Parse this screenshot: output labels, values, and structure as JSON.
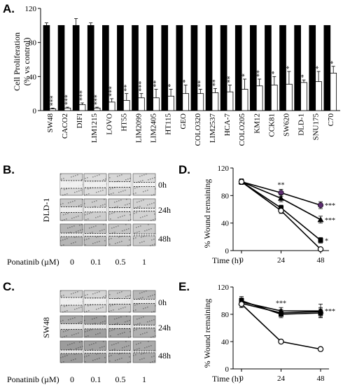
{
  "panel_labels": {
    "a": "A.",
    "b": "B.",
    "c": "C.",
    "d": "D.",
    "e": "E."
  },
  "panel_a": {
    "ylabel_line1": "Cell Proliferation",
    "ylabel_line2": "(% vs control)",
    "yticks": [
      "0",
      "40",
      "80",
      "120"
    ]
  },
  "panel_b": {
    "cell_line": "DLD-1",
    "time_labels": [
      "0h",
      "24h",
      "48h"
    ],
    "conc_title": "Ponatinib (µM)",
    "conc_values": [
      "0",
      "0.1",
      "0.5",
      "1"
    ]
  },
  "panel_c": {
    "cell_line": "SW48",
    "time_labels": [
      "0h",
      "24h",
      "48h"
    ],
    "conc_title": "Ponatinib (µM)",
    "conc_values": [
      "0",
      "0.1",
      "0.5",
      "1"
    ]
  },
  "panel_d": {
    "ylabel": "% Wound remaining",
    "xlabel_prefix": "Time (h)",
    "yticks": [
      "0",
      "40",
      "80",
      "120"
    ],
    "xticks": [
      "0",
      "24",
      "48"
    ]
  },
  "panel_e": {
    "ylabel": "% Wound remaining",
    "xlabel_prefix": "Time (h)",
    "yticks": [
      "0",
      "40",
      "80",
      "120"
    ],
    "xticks": [
      "0",
      "24",
      "48"
    ]
  },
  "chart_data": [
    {
      "panel": "A",
      "type": "bar",
      "ylabel": "Cell Proliferation (% vs control)",
      "ylim": [
        0,
        120
      ],
      "yticks": [
        0,
        40,
        80,
        120
      ],
      "categories": [
        "SW48",
        "CACO2",
        "DIFI",
        "LIM1215",
        "LOVO",
        "HT55",
        "LIM2099",
        "LIM2405",
        "HT115",
        "GEO",
        "COLO320",
        "LIM2537",
        "HCA-7",
        "COLO205",
        "KM12",
        "CCK81",
        "SW620",
        "DLD-1",
        "SNU175",
        "C70"
      ],
      "series": [
        {
          "color": "#000000",
          "values": [
            100,
            100,
            100,
            100,
            100,
            100,
            100,
            100,
            100,
            100,
            100,
            100,
            100,
            100,
            100,
            100,
            100,
            100,
            100,
            100
          ],
          "errors": [
            3,
            0,
            8,
            3,
            0,
            0,
            0,
            0,
            0,
            0,
            0,
            0,
            0,
            0,
            0,
            0,
            0,
            0,
            0,
            0
          ]
        },
        {
          "color": "#ffffff",
          "values": [
            2,
            3,
            7,
            3,
            10,
            12,
            15,
            15,
            17,
            20,
            20,
            21,
            22,
            25,
            29,
            30,
            31,
            33,
            34,
            44
          ],
          "errors": [
            1,
            1,
            2,
            1,
            4,
            8,
            5,
            10,
            8,
            10,
            5,
            5,
            8,
            12,
            8,
            10,
            15,
            3,
            12,
            8
          ]
        }
      ],
      "significance": [
        "***",
        "***",
        "***",
        "***",
        "***",
        "**",
        "***",
        "**",
        "*",
        "*",
        "**",
        "**",
        "**",
        "*",
        "**",
        "*",
        "*",
        "*",
        "*",
        "*"
      ]
    },
    {
      "panel": "D",
      "type": "line",
      "ylabel": "% Wound remaining",
      "xlabel": "Time (h)",
      "x": [
        0,
        24,
        48
      ],
      "ylim": [
        0,
        120
      ],
      "yticks": [
        0,
        40,
        80,
        120
      ],
      "series": [
        {
          "marker": "circle-purple",
          "color": "#5b2c6f",
          "values": [
            100,
            84,
            66
          ],
          "errors": [
            4,
            5,
            5
          ]
        },
        {
          "marker": "triangle",
          "color": "#000000",
          "values": [
            100,
            76,
            45
          ],
          "errors": [
            4,
            5,
            5
          ]
        },
        {
          "marker": "square",
          "color": "#000000",
          "values": [
            100,
            62,
            15
          ],
          "errors": [
            4,
            4,
            4
          ]
        },
        {
          "marker": "open-circle",
          "color": "#ffffff",
          "values": [
            100,
            58,
            2
          ],
          "errors": [
            4,
            4,
            2
          ]
        }
      ],
      "significance": [
        {
          "x": 24,
          "label": "**"
        },
        {
          "x": 48,
          "label": "***",
          "series_index": 0
        },
        {
          "x": 48,
          "label": "***",
          "series_index": 1
        },
        {
          "x": 48,
          "label": "*",
          "series_index": 2
        }
      ]
    },
    {
      "panel": "E",
      "type": "line",
      "ylabel": "% Wound remaining",
      "xlabel": "Time (h)",
      "x": [
        0,
        24,
        48
      ],
      "ylim": [
        0,
        120
      ],
      "yticks": [
        0,
        40,
        80,
        120
      ],
      "series": [
        {
          "marker": "square",
          "color": "#000000",
          "values": [
            100,
            80,
            82
          ],
          "errors": [
            6,
            5,
            6
          ]
        },
        {
          "marker": "triangle",
          "color": "#000000",
          "values": [
            98,
            85,
            85
          ],
          "errors": [
            6,
            5,
            10
          ]
        },
        {
          "marker": "circle-filled",
          "color": "#000000",
          "values": [
            96,
            82,
            84
          ],
          "errors": [
            6,
            5,
            6
          ]
        },
        {
          "marker": "open-circle",
          "color": "#ffffff",
          "values": [
            95,
            40,
            29
          ],
          "errors": [
            5,
            3,
            3
          ]
        }
      ],
      "significance": [
        {
          "x": 24,
          "label": "***"
        },
        {
          "x": 48,
          "label": "***"
        }
      ]
    }
  ]
}
